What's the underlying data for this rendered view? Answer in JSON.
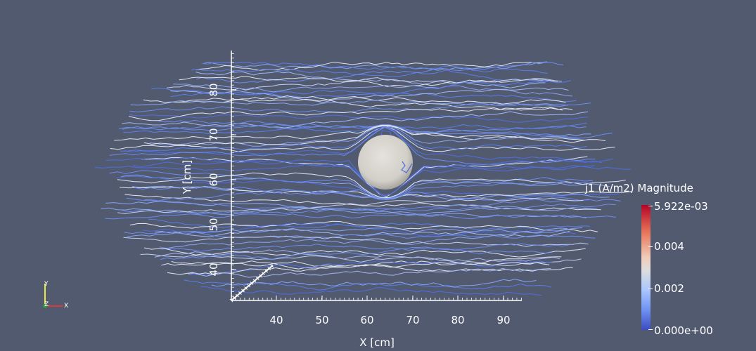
{
  "axes": {
    "x_title": "X [cm]",
    "y_title": "Y [cm]",
    "x_ticks": [
      "40",
      "50",
      "60",
      "70",
      "80",
      "90"
    ],
    "y_ticks": [
      "40",
      "50",
      "60",
      "70",
      "80"
    ]
  },
  "legend": {
    "title": "j1 (A/m2) Magnitude",
    "max_label": "5.922e-03",
    "mid_high_label": "0.004",
    "mid_low_label": "0.002",
    "min_label": "0.000e+00",
    "colors": {
      "high": "#b40426",
      "mid": "#dddddd",
      "low": "#3b4cc0"
    }
  },
  "orientation": {
    "y": "Y",
    "z": "Z",
    "x": "X"
  },
  "colors": {
    "background": "#525a70",
    "sphere": "#d9d6d0",
    "streamline_low": "#5a7ff0",
    "streamline_high": "#e8ecf8"
  },
  "icons": [
    "orientation-axes-icon",
    "sphere-object",
    "streamlines"
  ]
}
